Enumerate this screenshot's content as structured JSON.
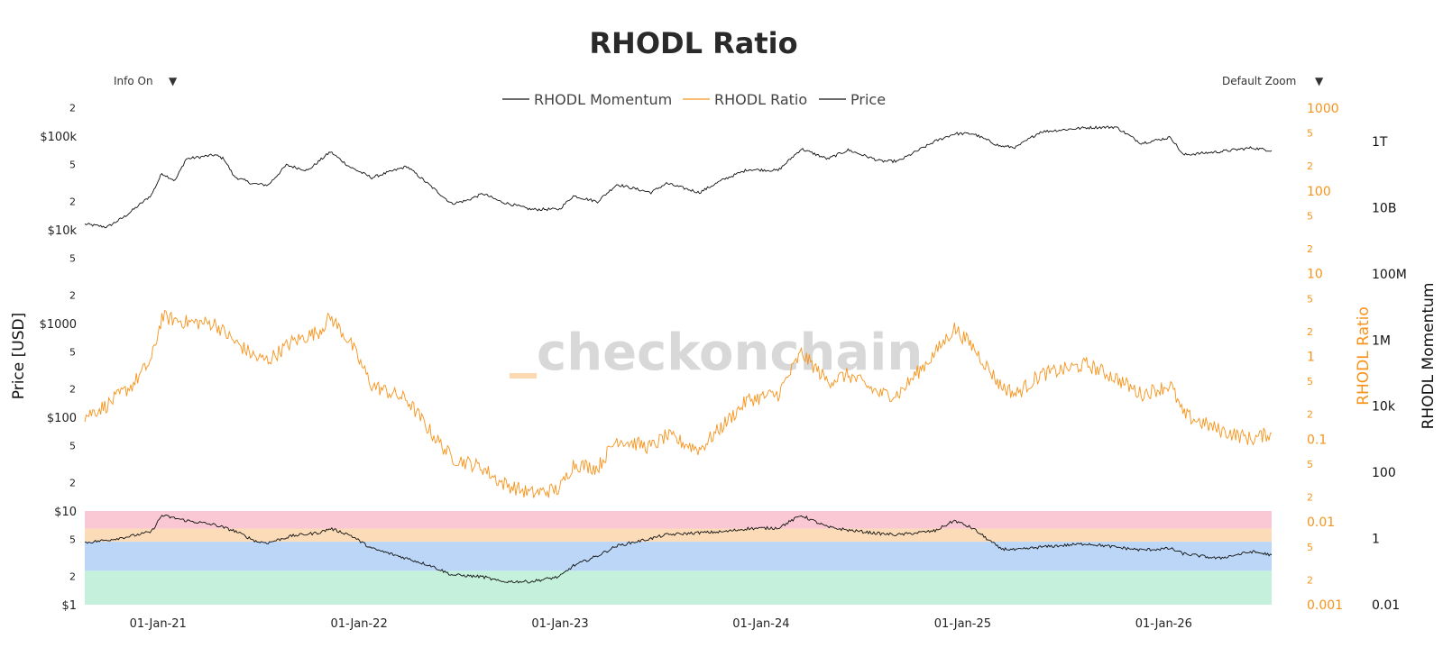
{
  "chart_data": {
    "type": "line",
    "title": "RHODL Ratio",
    "watermark": "checkonchain",
    "menus": {
      "info": "Info On",
      "zoom": "Default Zoom",
      "caret": "▼"
    },
    "x_range": [
      "2020-08-21",
      "2026-07-16"
    ],
    "x_ticks": [
      {
        "date": "2021-01-01",
        "label": "01-Jan-21"
      },
      {
        "date": "2022-01-01",
        "label": "01-Jan-22"
      },
      {
        "date": "2023-01-01",
        "label": "01-Jan-23"
      },
      {
        "date": "2024-01-01",
        "label": "01-Jan-24"
      },
      {
        "date": "2025-01-01",
        "label": "01-Jan-25"
      },
      {
        "date": "2026-01-01",
        "label": "01-Jan-26"
      }
    ],
    "legend": [
      {
        "name": "RHODL Momentum",
        "color": "#111111"
      },
      {
        "name": "RHODL Ratio",
        "color": "#f7931a"
      },
      {
        "name": "Price",
        "color": "#111111"
      }
    ],
    "axes": {
      "price": {
        "title": "Price [USD]",
        "scale": "log",
        "range": [
          1,
          200000
        ],
        "major_ticks": [
          {
            "v": 100000,
            "label": "$100k"
          },
          {
            "v": 10000,
            "label": "$10k"
          },
          {
            "v": 1000,
            "label": "$1000"
          },
          {
            "v": 100,
            "label": "$100"
          },
          {
            "v": 10,
            "label": "$10"
          },
          {
            "v": 1,
            "label": "$1"
          }
        ],
        "minor_ticks": [
          {
            "v": 200000,
            "label": "2"
          },
          {
            "v": 50000,
            "label": "5"
          },
          {
            "v": 20000,
            "label": "2"
          },
          {
            "v": 5000,
            "label": "5"
          },
          {
            "v": 2000,
            "label": "2"
          },
          {
            "v": 500,
            "label": "5"
          },
          {
            "v": 200,
            "label": "2"
          },
          {
            "v": 50,
            "label": "5"
          },
          {
            "v": 20,
            "label": "2"
          },
          {
            "v": 5,
            "label": "5"
          },
          {
            "v": 2,
            "label": "2"
          }
        ]
      },
      "rhodl_ratio": {
        "title": "RHODL Ratio",
        "scale": "log",
        "range": [
          0.001,
          1000
        ],
        "color": "#f7931a",
        "major_ticks": [
          {
            "v": 1000,
            "label": "1000"
          },
          {
            "v": 100,
            "label": "100"
          },
          {
            "v": 10,
            "label": "10"
          },
          {
            "v": 1,
            "label": "1"
          },
          {
            "v": 0.1,
            "label": "0.1"
          },
          {
            "v": 0.01,
            "label": "0.01"
          },
          {
            "v": 0.001,
            "label": "0.001"
          }
        ],
        "minor_ticks": [
          {
            "v": 500,
            "label": "5"
          },
          {
            "v": 200,
            "label": "2"
          },
          {
            "v": 50,
            "label": "5"
          },
          {
            "v": 20,
            "label": "2"
          },
          {
            "v": 5,
            "label": "5"
          },
          {
            "v": 2,
            "label": "2"
          },
          {
            "v": 0.5,
            "label": "5"
          },
          {
            "v": 0.2,
            "label": "2"
          },
          {
            "v": 0.05,
            "label": "5"
          },
          {
            "v": 0.02,
            "label": "2"
          },
          {
            "v": 0.005,
            "label": "5"
          },
          {
            "v": 0.002,
            "label": "2"
          }
        ]
      },
      "rhodl_momentum": {
        "title": "RHODL Momentum",
        "scale": "log",
        "range": [
          0.01,
          1000000000000
        ],
        "ticks": [
          {
            "v": 1000000000000,
            "label": "1T"
          },
          {
            "v": 10000000000,
            "label": "10B"
          },
          {
            "v": 100000000,
            "label": "100M"
          },
          {
            "v": 1000000,
            "label": "1M"
          },
          {
            "v": 10000,
            "label": "10k"
          },
          {
            "v": 100,
            "label": "100"
          },
          {
            "v": 1,
            "label": "1"
          },
          {
            "v": 0.01,
            "label": "0.01"
          }
        ]
      }
    },
    "bands": [
      {
        "from": 10,
        "to": 6.5,
        "color": "#f9c8d4"
      },
      {
        "from": 6.5,
        "to": 4.7,
        "color": "#fcdcb8"
      },
      {
        "from": 4.7,
        "to": 2.3,
        "color": "#bcd6f7"
      },
      {
        "from": 2.3,
        "to": 1,
        "color": "#c4f0dc"
      }
    ],
    "series": [
      {
        "name": "Price",
        "axis": "price",
        "color": "#111111",
        "points": [
          [
            "2020-08-21",
            11500
          ],
          [
            "2020-10-01",
            10700
          ],
          [
            "2020-11-01",
            13800
          ],
          [
            "2020-12-01",
            19000
          ],
          [
            "2020-12-20",
            23500
          ],
          [
            "2021-01-08",
            40000
          ],
          [
            "2021-02-01",
            33500
          ],
          [
            "2021-02-21",
            57000
          ],
          [
            "2021-04-14",
            63000
          ],
          [
            "2021-05-01",
            57000
          ],
          [
            "2021-05-19",
            37000
          ],
          [
            "2021-06-22",
            31000
          ],
          [
            "2021-07-20",
            30000
          ],
          [
            "2021-08-22",
            49000
          ],
          [
            "2021-09-30",
            43000
          ],
          [
            "2021-11-10",
            68000
          ],
          [
            "2021-12-15",
            47000
          ],
          [
            "2022-01-24",
            36000
          ],
          [
            "2022-03-29",
            47500
          ],
          [
            "2022-05-12",
            29000
          ],
          [
            "2022-06-18",
            19000
          ],
          [
            "2022-07-15",
            20500
          ],
          [
            "2022-08-14",
            24300
          ],
          [
            "2022-09-15",
            20000
          ],
          [
            "2022-11-09",
            16500
          ],
          [
            "2022-12-31",
            16600
          ],
          [
            "2023-01-25",
            23000
          ],
          [
            "2023-03-10",
            20000
          ],
          [
            "2023-04-14",
            30500
          ],
          [
            "2023-06-15",
            25000
          ],
          [
            "2023-07-13",
            31300
          ],
          [
            "2023-09-11",
            25000
          ],
          [
            "2023-10-25",
            34500
          ],
          [
            "2023-12-08",
            44000
          ],
          [
            "2024-02-01",
            43000
          ],
          [
            "2024-03-14",
            73000
          ],
          [
            "2024-05-01",
            57000
          ],
          [
            "2024-06-07",
            71000
          ],
          [
            "2024-08-05",
            54000
          ],
          [
            "2024-09-06",
            54000
          ],
          [
            "2024-11-12",
            88000
          ],
          [
            "2024-12-17",
            106000
          ],
          [
            "2025-01-20",
            106000
          ],
          [
            "2025-03-10",
            78000
          ],
          [
            "2025-04-08",
            76000
          ],
          [
            "2025-05-22",
            111000
          ],
          [
            "2025-08-14",
            123000
          ],
          [
            "2025-10-06",
            125000
          ],
          [
            "2025-11-21",
            84000
          ],
          [
            "2026-01-14",
            97000
          ],
          [
            "2026-02-05",
            63000
          ],
          [
            "2026-04-10",
            68000
          ],
          [
            "2026-06-10",
            75000
          ],
          [
            "2026-07-16",
            70000
          ]
        ]
      },
      {
        "name": "RHODL Ratio",
        "axis": "rhodl_ratio",
        "color": "#f7931a",
        "points": [
          [
            "2020-08-21",
            0.19
          ],
          [
            "2020-10-01",
            0.26
          ],
          [
            "2020-11-15",
            0.45
          ],
          [
            "2020-12-20",
            0.9
          ],
          [
            "2021-01-08",
            3.0
          ],
          [
            "2021-02-21",
            2.6
          ],
          [
            "2021-04-14",
            2.5
          ],
          [
            "2021-05-20",
            1.5
          ],
          [
            "2021-06-30",
            0.95
          ],
          [
            "2021-07-20",
            0.9
          ],
          [
            "2021-09-01",
            1.5
          ],
          [
            "2021-10-20",
            2.0
          ],
          [
            "2021-11-10",
            3.0
          ],
          [
            "2021-12-15",
            1.5
          ],
          [
            "2022-01-24",
            0.45
          ],
          [
            "2022-03-29",
            0.3
          ],
          [
            "2022-05-12",
            0.12
          ],
          [
            "2022-06-18",
            0.06
          ],
          [
            "2022-08-14",
            0.045
          ],
          [
            "2022-09-15",
            0.03
          ],
          [
            "2022-11-09",
            0.022
          ],
          [
            "2022-12-31",
            0.025
          ],
          [
            "2023-01-25",
            0.05
          ],
          [
            "2023-03-10",
            0.045
          ],
          [
            "2023-04-14",
            0.1
          ],
          [
            "2023-06-15",
            0.08
          ],
          [
            "2023-07-13",
            0.11
          ],
          [
            "2023-09-11",
            0.075
          ],
          [
            "2023-10-25",
            0.15
          ],
          [
            "2023-12-08",
            0.3
          ],
          [
            "2024-02-01",
            0.35
          ],
          [
            "2024-03-14",
            1.1
          ],
          [
            "2024-05-01",
            0.5
          ],
          [
            "2024-06-07",
            0.6
          ],
          [
            "2024-08-05",
            0.35
          ],
          [
            "2024-09-06",
            0.35
          ],
          [
            "2024-11-12",
            1.1
          ],
          [
            "2024-12-17",
            2.2
          ],
          [
            "2025-01-20",
            1.3
          ],
          [
            "2025-03-10",
            0.45
          ],
          [
            "2025-04-08",
            0.35
          ],
          [
            "2025-05-22",
            0.6
          ],
          [
            "2025-08-14",
            0.8
          ],
          [
            "2025-10-06",
            0.55
          ],
          [
            "2025-11-21",
            0.35
          ],
          [
            "2026-01-14",
            0.45
          ],
          [
            "2026-02-05",
            0.2
          ],
          [
            "2026-04-10",
            0.13
          ],
          [
            "2026-06-10",
            0.1
          ],
          [
            "2026-07-16",
            0.12
          ]
        ]
      },
      {
        "name": "RHODL Momentum",
        "axis": "rhodl_momentum",
        "color": "#111111",
        "points": [
          [
            "2020-08-21",
            0.75
          ],
          [
            "2020-10-01",
            0.9
          ],
          [
            "2020-11-15",
            1.2
          ],
          [
            "2020-12-20",
            1.6
          ],
          [
            "2021-01-08",
            5.0
          ],
          [
            "2021-02-21",
            3.5
          ],
          [
            "2021-04-14",
            2.6
          ],
          [
            "2021-05-20",
            1.7
          ],
          [
            "2021-06-30",
            0.8
          ],
          [
            "2021-07-20",
            0.75
          ],
          [
            "2021-09-01",
            1.2
          ],
          [
            "2021-10-20",
            1.5
          ],
          [
            "2021-11-10",
            2.0
          ],
          [
            "2021-12-15",
            1.3
          ],
          [
            "2022-01-24",
            0.5
          ],
          [
            "2022-03-29",
            0.25
          ],
          [
            "2022-05-12",
            0.15
          ],
          [
            "2022-06-18",
            0.08
          ],
          [
            "2022-08-14",
            0.07
          ],
          [
            "2022-09-15",
            0.05
          ],
          [
            "2022-11-09",
            0.05
          ],
          [
            "2022-12-31",
            0.07
          ],
          [
            "2023-01-25",
            0.15
          ],
          [
            "2023-03-10",
            0.3
          ],
          [
            "2023-04-14",
            0.6
          ],
          [
            "2023-06-15",
            1.0
          ],
          [
            "2023-07-13",
            1.3
          ],
          [
            "2023-09-11",
            1.5
          ],
          [
            "2023-10-25",
            1.6
          ],
          [
            "2023-12-08",
            2.0
          ],
          [
            "2024-02-01",
            2.1
          ],
          [
            "2024-03-14",
            5.0
          ],
          [
            "2024-05-01",
            2.2
          ],
          [
            "2024-06-07",
            1.8
          ],
          [
            "2024-08-05",
            1.4
          ],
          [
            "2024-09-06",
            1.3
          ],
          [
            "2024-11-12",
            1.7
          ],
          [
            "2024-12-17",
            3.5
          ],
          [
            "2025-01-20",
            2.0
          ],
          [
            "2025-03-10",
            0.5
          ],
          [
            "2025-04-08",
            0.45
          ],
          [
            "2025-05-22",
            0.55
          ],
          [
            "2025-08-14",
            0.7
          ],
          [
            "2025-10-06",
            0.55
          ],
          [
            "2025-11-21",
            0.45
          ],
          [
            "2026-01-14",
            0.5
          ],
          [
            "2026-02-05",
            0.35
          ],
          [
            "2026-04-10",
            0.25
          ],
          [
            "2026-06-10",
            0.4
          ],
          [
            "2026-07-16",
            0.32
          ]
        ]
      }
    ]
  }
}
